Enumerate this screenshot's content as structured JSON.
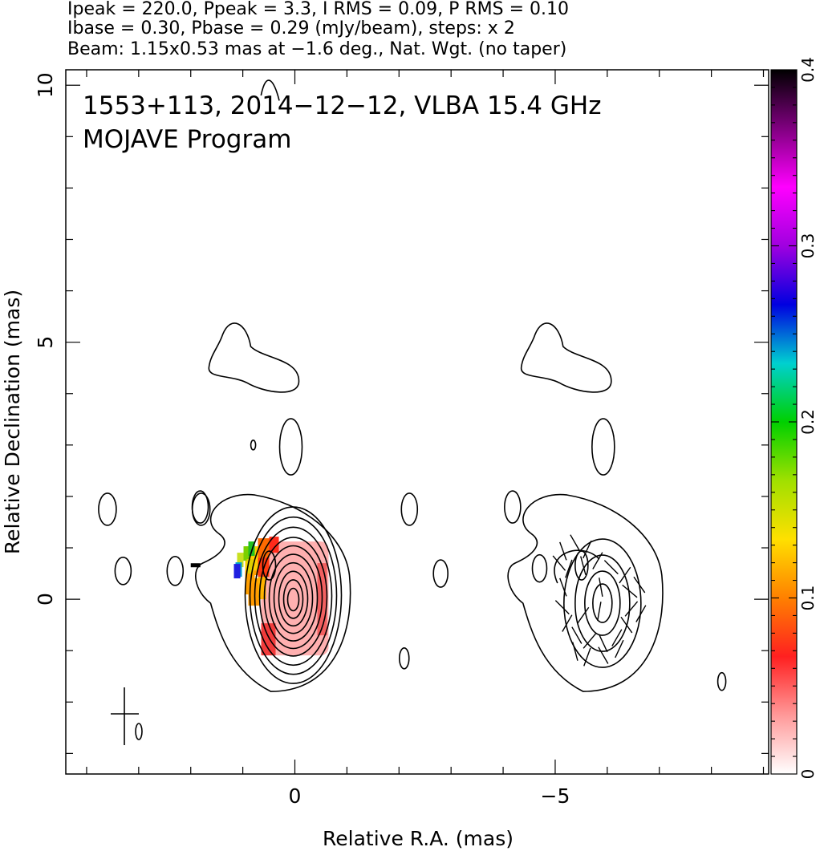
{
  "header": {
    "line1": "Ipeak = 220.0, Ppeak = 3.3, I RMS = 0.09, P RMS = 0.10",
    "line2": "Ibase = 0.30, Pbase = 0.29 (mJy/beam), steps: x 2",
    "line3": "Beam: 1.15x0.53 mas at −1.6 deg., Nat. Wgt. (no taper)"
  },
  "chart_data": {
    "type": "heatmap",
    "title": "1553+113, 2014−12−12, VLBA 15.4 GHz",
    "subtitle": "MOJAVE Program",
    "xlabel": "Relative R.A. (mas)",
    "ylabel": "Relative Declination (mas)",
    "xlim": [
      4.4,
      -9.1
    ],
    "ylim": [
      -3.4,
      10.3
    ],
    "x_ticks": [
      0,
      -5
    ],
    "x_tick_labels": [
      "0",
      "−5"
    ],
    "y_ticks": [
      0,
      5,
      10
    ],
    "y_tick_labels": [
      "0",
      "5",
      "10"
    ],
    "colorbar": {
      "range": [
        0,
        0.4
      ],
      "ticks": [
        0,
        0.1,
        0.2,
        0.3,
        0.4
      ],
      "tick_labels": [
        "0",
        "0.1",
        "0.2",
        "0.3",
        "0.4"
      ],
      "colormap": [
        "#ffffff",
        "#ff9999",
        "#ff2020",
        "#ff8000",
        "#ffe000",
        "#a0e000",
        "#00d000",
        "#00d0d0",
        "#0000e0",
        "#a000e0",
        "#ff00ff",
        "#800080",
        "#000000"
      ]
    },
    "panels": [
      {
        "name": "Stokes I contours with fractional polarization color",
        "center_ra": 0,
        "center_dec": 0
      },
      {
        "name": "Stokes I contours with EVPA sticks",
        "center_ra": -6,
        "center_dec": 0
      }
    ],
    "core_contour_levels_mJy_per_beam": [
      0.3,
      0.6,
      1.2,
      2.4,
      4.8,
      9.6,
      19.2,
      38.4,
      76.8,
      153.6
    ],
    "beam": {
      "major_mas": 1.15,
      "minor_mas": 0.53,
      "pa_deg": -1.6
    }
  }
}
